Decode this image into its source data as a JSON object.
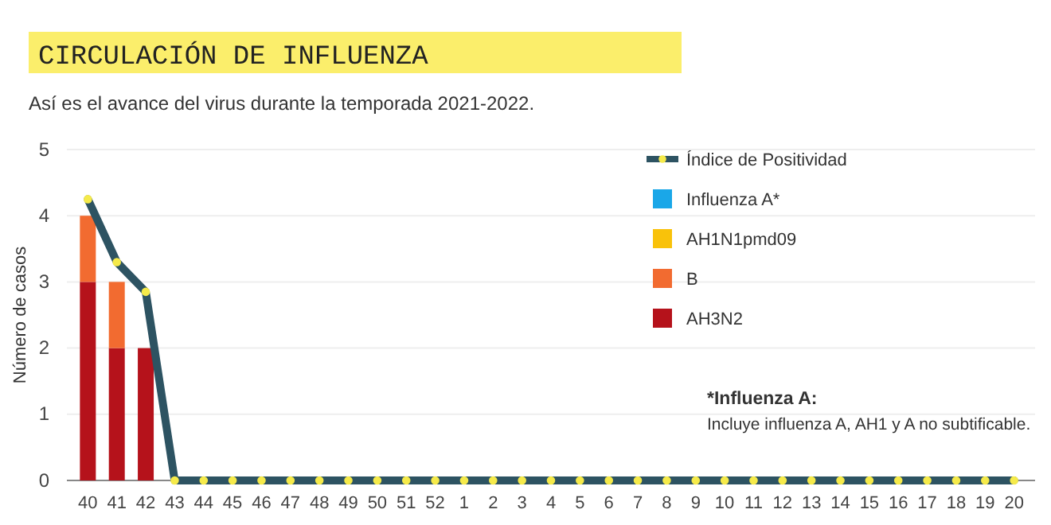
{
  "chart_data": {
    "type": "bar",
    "title": "CIRCULACIÓN DE INFLUENZA",
    "subtitle": "Así es el avance del virus durante la temporada 2021-2022.",
    "ylabel": "Número de casos",
    "categories": [
      "40",
      "41",
      "42",
      "43",
      "44",
      "45",
      "46",
      "47",
      "48",
      "49",
      "50",
      "51",
      "52",
      "1",
      "2",
      "3",
      "4",
      "5",
      "6",
      "7",
      "8",
      "9",
      "10",
      "11",
      "12",
      "13",
      "14",
      "15",
      "16",
      "17",
      "18",
      "19",
      "20"
    ],
    "stacked": true,
    "series": [
      {
        "name": "AH3N2",
        "color": "#b5121b",
        "values": [
          3,
          2,
          2,
          0,
          0,
          0,
          0,
          0,
          0,
          0,
          0,
          0,
          0,
          0,
          0,
          0,
          0,
          0,
          0,
          0,
          0,
          0,
          0,
          0,
          0,
          0,
          0,
          0,
          0,
          0,
          0,
          0,
          0
        ]
      },
      {
        "name": "B",
        "color": "#f26b30",
        "values": [
          1,
          1,
          0,
          0,
          0,
          0,
          0,
          0,
          0,
          0,
          0,
          0,
          0,
          0,
          0,
          0,
          0,
          0,
          0,
          0,
          0,
          0,
          0,
          0,
          0,
          0,
          0,
          0,
          0,
          0,
          0,
          0,
          0
        ]
      },
      {
        "name": "AH1N1pmd09",
        "color": "#f9c20a",
        "values": [
          0,
          0,
          0,
          0,
          0,
          0,
          0,
          0,
          0,
          0,
          0,
          0,
          0,
          0,
          0,
          0,
          0,
          0,
          0,
          0,
          0,
          0,
          0,
          0,
          0,
          0,
          0,
          0,
          0,
          0,
          0,
          0,
          0
        ]
      },
      {
        "name": "Influenza A*",
        "color": "#1aa7e8",
        "values": [
          0,
          0,
          0,
          0,
          0,
          0,
          0,
          0,
          0,
          0,
          0,
          0,
          0,
          0,
          0,
          0,
          0,
          0,
          0,
          0,
          0,
          0,
          0,
          0,
          0,
          0,
          0,
          0,
          0,
          0,
          0,
          0,
          0
        ]
      },
      {
        "name": "Índice de Positividad",
        "type": "line",
        "color": "#2d5362",
        "marker": "circle",
        "values": [
          4.25,
          3.3,
          2.85,
          0,
          0,
          0,
          0,
          0,
          0,
          0,
          0,
          0,
          0,
          0,
          0,
          0,
          0,
          0,
          0,
          0,
          0,
          0,
          0,
          0,
          0,
          0,
          0,
          0,
          0,
          0,
          0,
          0,
          0
        ]
      }
    ],
    "ylim": [
      0,
      5
    ],
    "yticks": [
      0,
      1,
      2,
      3,
      4,
      5
    ],
    "grid": "y",
    "legend": "top right",
    "annotations": [
      "*Influenza A:",
      "Incluye influenza A, AH1 y A no subtificable."
    ]
  }
}
